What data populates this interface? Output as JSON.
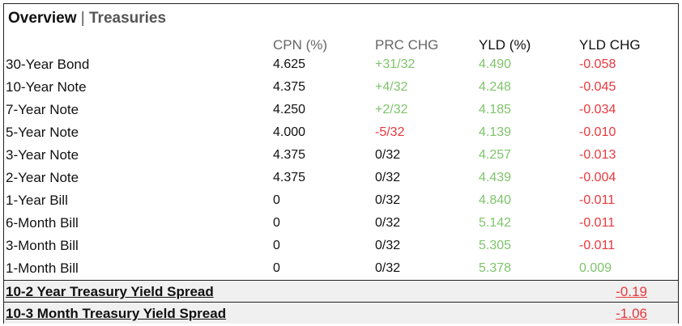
{
  "title": {
    "main": "Overview",
    "separator": "|",
    "sub": "Treasuries"
  },
  "columns": {
    "cpn": "CPN (%)",
    "prc": "PRC CHG",
    "yld": "YLD (%)",
    "ychg": "YLD CHG"
  },
  "rows": [
    {
      "name": "30-Year Bond",
      "cpn": "4.625",
      "prc": "+31/32",
      "yld": "4.490",
      "ychg": "-0.058",
      "prc_dir": "pos",
      "ychg_dir": "neg"
    },
    {
      "name": "10-Year Note",
      "cpn": "4.375",
      "prc": "+4/32",
      "yld": "4.248",
      "ychg": "-0.045",
      "prc_dir": "pos",
      "ychg_dir": "neg"
    },
    {
      "name": "7-Year Note",
      "cpn": "4.250",
      "prc": "+2/32",
      "yld": "4.185",
      "ychg": "-0.034",
      "prc_dir": "pos",
      "ychg_dir": "neg"
    },
    {
      "name": "5-Year Note",
      "cpn": "4.000",
      "prc": "-5/32",
      "yld": "4.139",
      "ychg": "-0.010",
      "prc_dir": "neg",
      "ychg_dir": "neg"
    },
    {
      "name": "3-Year Note",
      "cpn": "4.375",
      "prc": "0/32",
      "yld": "4.257",
      "ychg": "-0.013",
      "prc_dir": "neu",
      "ychg_dir": "neg"
    },
    {
      "name": "2-Year Note",
      "cpn": "4.375",
      "prc": "0/32",
      "yld": "4.439",
      "ychg": "-0.004",
      "prc_dir": "neu",
      "ychg_dir": "neg"
    },
    {
      "name": "1-Year Bill",
      "cpn": "0",
      "prc": "0/32",
      "yld": "4.840",
      "ychg": "-0.011",
      "prc_dir": "neu",
      "ychg_dir": "neg"
    },
    {
      "name": "6-Month Bill",
      "cpn": "0",
      "prc": "0/32",
      "yld": "5.142",
      "ychg": "-0.011",
      "prc_dir": "neu",
      "ychg_dir": "neg"
    },
    {
      "name": "3-Month Bill",
      "cpn": "0",
      "prc": "0/32",
      "yld": "5.305",
      "ychg": "-0.011",
      "prc_dir": "neu",
      "ychg_dir": "neg"
    },
    {
      "name": "1-Month Bill",
      "cpn": "0",
      "prc": "0/32",
      "yld": "5.378",
      "ychg": "0.009",
      "prc_dir": "neu",
      "ychg_dir": "pos"
    }
  ],
  "spreads": [
    {
      "label": "10-2 Year Treasury Yield Spread",
      "value": "-0.19"
    },
    {
      "label": "10-3 Month Treasury Yield Spread",
      "value": "-1.06"
    }
  ],
  "colors": {
    "positive": "#7ec46b",
    "negative": "#e8383d",
    "neutral": "#111111"
  }
}
